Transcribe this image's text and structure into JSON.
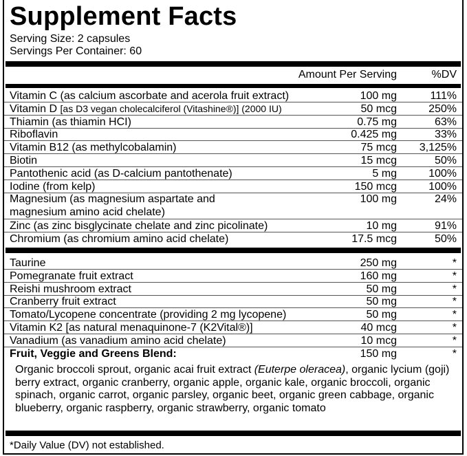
{
  "title": "Supplement Facts",
  "serving_size": "Serving Size: 2 capsules",
  "servings_per_container": "Servings Per Container: 60",
  "header": {
    "amount": "Amount Per Serving",
    "dv": "%DV"
  },
  "vitamins": [
    {
      "name": "Vitamin C (as calcium ascorbate and acerola fruit extract)",
      "amount": "100 mg",
      "dv": "111%"
    },
    {
      "name": "Vitamin D",
      "name_detail": "[as D3 vegan cholecalciferol (Vitashine®)]  (2000 IU)",
      "amount": "50 mcg",
      "dv": "250%"
    },
    {
      "name": "Thiamin (as thiamin HCI)",
      "amount": "0.75 mg",
      "dv": "63%"
    },
    {
      "name": "Riboflavin",
      "amount": "0.425 mg",
      "dv": "33%"
    },
    {
      "name": "Vitamin B12 (as methylcobalamin)",
      "amount": "75 mcg",
      "dv": "3,125%"
    },
    {
      "name": "Biotin",
      "amount": "15 mcg",
      "dv": "50%"
    },
    {
      "name": "Pantothenic acid (as D-calcium pantothenate)",
      "amount": "5 mg",
      "dv": "100%"
    },
    {
      "name": "Iodine (from kelp)",
      "amount": "150 mcg",
      "dv": "100%"
    },
    {
      "name": "Magnesium (as magnesium aspartate and",
      "name_line2": "magnesium amino acid chelate)",
      "amount": "100 mg",
      "dv": "24%"
    },
    {
      "name": "Zinc (as zinc bisglycinate chelate and zinc picolinate)",
      "amount": "10 mg",
      "dv": "91%"
    },
    {
      "name": "Chromium (as chromium amino acid chelate)",
      "amount": "17.5 mcg",
      "dv": "50%"
    }
  ],
  "others": [
    {
      "name": "Taurine",
      "amount": "250 mg",
      "dv": "*"
    },
    {
      "name": "Pomegranate fruit extract",
      "amount": "160 mg",
      "dv": "*"
    },
    {
      "name": "Reishi mushroom extract",
      "amount": "50 mg",
      "dv": "*"
    },
    {
      "name": "Cranberry fruit extract",
      "amount": "50 mg",
      "dv": "*"
    },
    {
      "name": "Tomato/Lycopene concentrate (providing 2 mg lycopene)",
      "amount": "50 mg",
      "dv": "*"
    },
    {
      "name": "Vitamin K2 [as natural menaquinone-7 (K2Vital®)]",
      "amount": "40 mcg",
      "dv": "*"
    },
    {
      "name": "Vanadium (as vanadium amino acid chelate)",
      "amount": "10 mcg",
      "dv": "*"
    },
    {
      "name": "Fruit, Veggie and Greens Blend:",
      "amount": "150 mg",
      "dv": "*"
    }
  ],
  "blend": {
    "before": "Organic broccoli sprout, organic acai fruit extract ",
    "italic": "(Euterpe oleracea)",
    "after": ", organic lycium (goji) berry extract, organic cranberry, organic apple, organic kale, organic broccoli, organic spinach, organic carrot, organic parsley, organic beet, organic green cabbage, organic blueberry, organic raspberry, organic strawberry, organic tomato"
  },
  "footnote": "*Daily Value (DV) not established."
}
